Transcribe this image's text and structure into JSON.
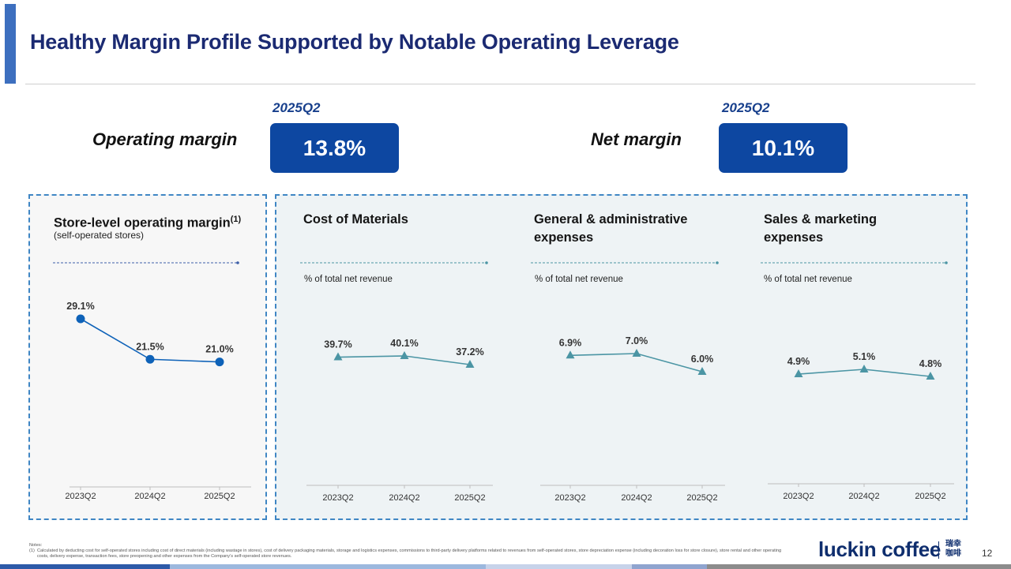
{
  "title": "Healthy Margin Profile Supported by Notable Operating Leverage",
  "kpis": [
    {
      "label": "Operating margin",
      "period": "2025Q2",
      "value": "13.8%"
    },
    {
      "label": "Net margin",
      "period": "2025Q2",
      "value": "10.1%"
    }
  ],
  "panels": {
    "store": {
      "title": "Store-level operating margin",
      "sup": "(1)",
      "subtitle": "(self-operated stores)"
    },
    "materials": {
      "title": "Cost of Materials",
      "unit": "% of total net revenue"
    },
    "ga": {
      "title_line1": "General & administrative",
      "title_line2": "expenses",
      "unit": "% of total net revenue"
    },
    "sm": {
      "title_line1": "Sales & marketing",
      "title_line2": "expenses",
      "unit": "% of total net revenue"
    }
  },
  "chart_data": [
    {
      "type": "line",
      "title": "Store-level operating margin (self-operated stores)",
      "categories": [
        "2023Q2",
        "2024Q2",
        "2025Q2"
      ],
      "values": [
        29.1,
        21.5,
        21.0
      ],
      "labels": [
        "29.1%",
        "21.5%",
        "21.0%"
      ],
      "marker": "circle",
      "color": "#0e62b8"
    },
    {
      "type": "line",
      "title": "Cost of Materials",
      "ylabel": "% of total net revenue",
      "categories": [
        "2023Q2",
        "2024Q2",
        "2025Q2"
      ],
      "values": [
        39.7,
        40.1,
        37.2
      ],
      "labels": [
        "39.7%",
        "40.1%",
        "37.2%"
      ],
      "marker": "triangle",
      "color": "#4b95a4"
    },
    {
      "type": "line",
      "title": "General & administrative expenses",
      "ylabel": "% of total net revenue",
      "categories": [
        "2023Q2",
        "2024Q2",
        "2025Q2"
      ],
      "values": [
        6.9,
        7.0,
        6.0
      ],
      "labels": [
        "6.9%",
        "7.0%",
        "6.0%"
      ],
      "marker": "triangle",
      "color": "#4b95a4"
    },
    {
      "type": "line",
      "title": "Sales & marketing expenses",
      "ylabel": "% of total net revenue",
      "categories": [
        "2023Q2",
        "2024Q2",
        "2025Q2"
      ],
      "values": [
        4.9,
        5.1,
        4.8
      ],
      "labels": [
        "4.9%",
        "5.1%",
        "4.8%"
      ],
      "marker": "triangle",
      "color": "#4b95a4"
    }
  ],
  "notes": {
    "heading": "Notes:",
    "items": [
      {
        "num": "(1)",
        "text": "Calculated by deducting cost for self-operated stores including cost of direct materials (including wastage in stores), cost of delivery packaging materials, storage and logistics expenses, commissions to third-party delivery platforms related to revenues from self-operated stores, store depreciation expense (including decoration loss for store closure), store rental and other operating costs, delivery expense, transaction fees, store preopening and other expenses from the Company’s self-operated store revenues."
      }
    ]
  },
  "brand": {
    "name": "luckin coffee",
    "cn": "瑞幸咖啡"
  },
  "page_number": "12"
}
